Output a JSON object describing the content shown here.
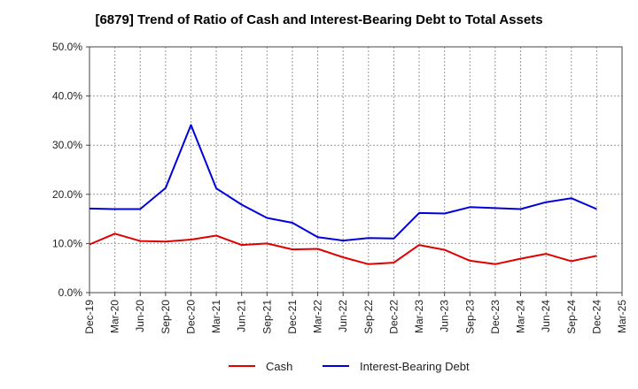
{
  "title": "[6879]  Trend of Ratio of Cash and Interest-Bearing Debt to Total Assets",
  "chart_data": {
    "type": "line",
    "title": "[6879]  Trend of Ratio of Cash and Interest-Bearing Debt to Total Assets",
    "xlabel": "",
    "ylabel": "",
    "x": [
      "Dec-19",
      "Mar-20",
      "Jun-20",
      "Sep-20",
      "Dec-20",
      "Mar-21",
      "Jun-21",
      "Sep-21",
      "Dec-21",
      "Mar-22",
      "Jun-22",
      "Sep-22",
      "Dec-22",
      "Mar-23",
      "Jun-23",
      "Sep-23",
      "Dec-23",
      "Mar-24",
      "Jun-24",
      "Sep-24",
      "Dec-24",
      "Mar-25"
    ],
    "x_tick_labels": [
      "Dec-19",
      "Mar-20",
      "Jun-20",
      "Sep-20",
      "Dec-20",
      "Mar-21",
      "Jun-21",
      "Sep-21",
      "Dec-21",
      "Mar-22",
      "Jun-22",
      "Sep-22",
      "Dec-22",
      "Mar-23",
      "Jun-23",
      "Sep-23",
      "Dec-23",
      "Mar-24",
      "Jun-24",
      "Sep-24",
      "Dec-24",
      "Mar-25"
    ],
    "y_tick_labels": [
      "0.0%",
      "10.0%",
      "20.0%",
      "30.0%",
      "40.0%",
      "50.0%"
    ],
    "y_ticks": [
      0,
      10,
      20,
      30,
      40,
      50
    ],
    "ylim": [
      0,
      50
    ],
    "grid": true,
    "legend_position": "bottom",
    "series": [
      {
        "name": "Cash",
        "color": "#e00000",
        "values": [
          9.8,
          12.0,
          10.5,
          10.4,
          10.8,
          11.6,
          9.7,
          10.0,
          8.8,
          8.9,
          7.2,
          5.8,
          6.1,
          9.7,
          8.7,
          6.5,
          5.8,
          6.9,
          7.9,
          6.4,
          7.5,
          null
        ]
      },
      {
        "name": "Interest-Bearing Debt",
        "color": "#0000dd",
        "values": [
          17.1,
          17.0,
          17.0,
          21.3,
          34.1,
          21.2,
          17.9,
          15.2,
          14.2,
          11.3,
          10.6,
          11.1,
          11.0,
          16.2,
          16.1,
          17.4,
          17.2,
          17.0,
          18.4,
          19.2,
          17.0,
          null
        ]
      }
    ]
  }
}
